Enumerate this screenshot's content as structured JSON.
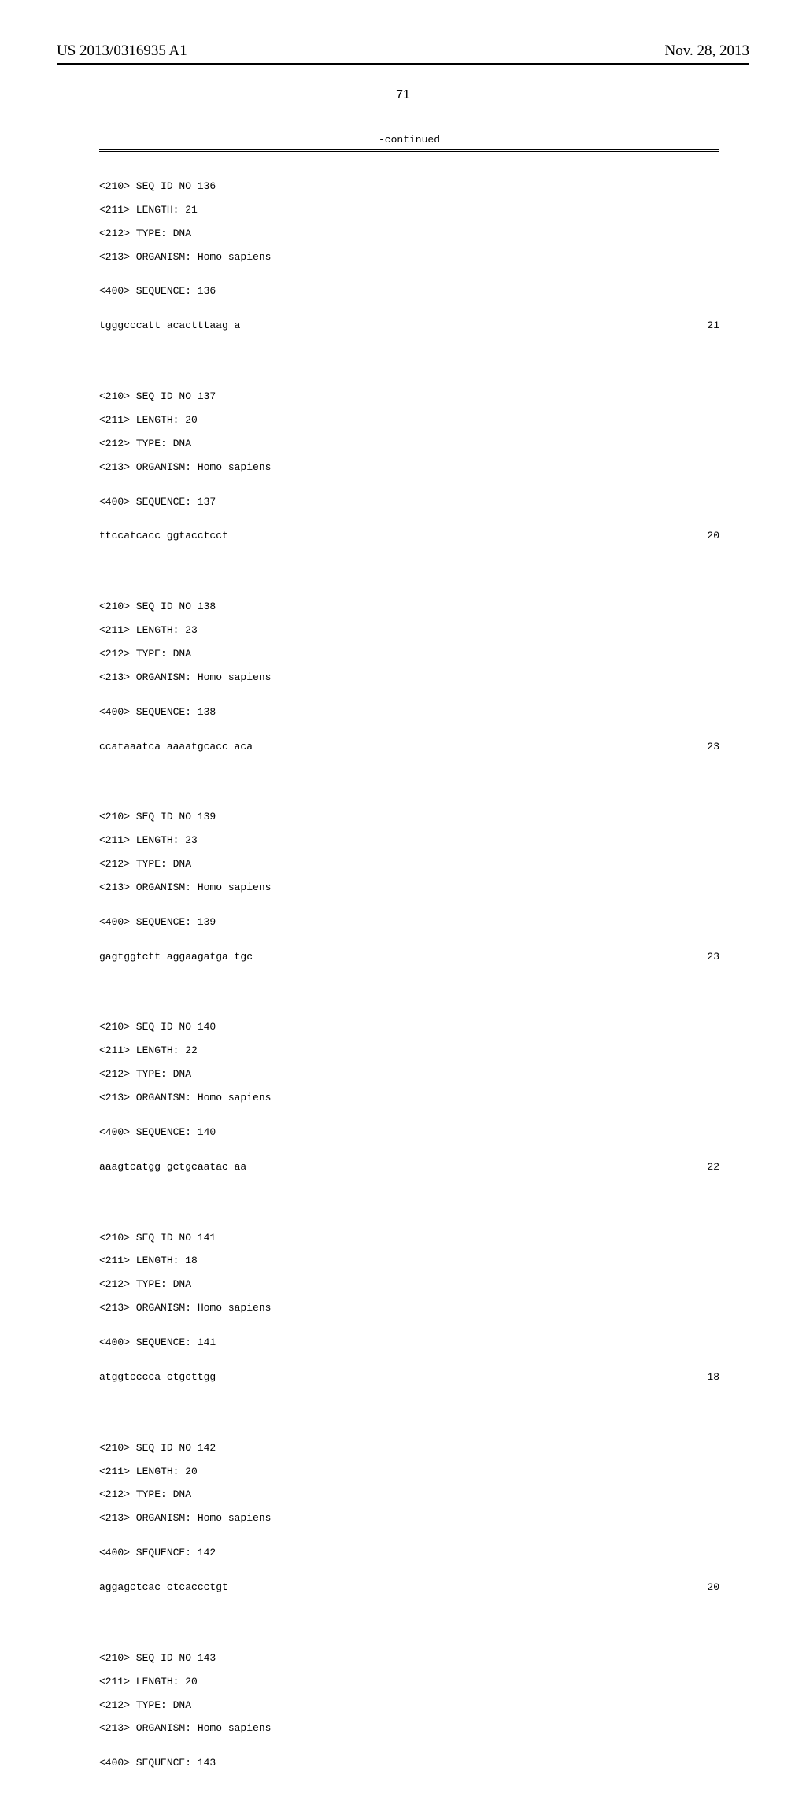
{
  "header": {
    "publication_number": "US 2013/0316935 A1",
    "publication_date": "Nov. 28, 2013",
    "page_number": "71",
    "continued_label": "-continued"
  },
  "sequences": [
    {
      "seq_id": "<210> SEQ ID NO 136",
      "length": "<211> LENGTH: 21",
      "type": "<212> TYPE: DNA",
      "organism": "<213> ORGANISM: Homo sapiens",
      "seq_label": "<400> SEQUENCE: 136",
      "dna": "tgggcccatt acactttaag a",
      "count": "21"
    },
    {
      "seq_id": "<210> SEQ ID NO 137",
      "length": "<211> LENGTH: 20",
      "type": "<212> TYPE: DNA",
      "organism": "<213> ORGANISM: Homo sapiens",
      "seq_label": "<400> SEQUENCE: 137",
      "dna": "ttccatcacc ggtacctcct",
      "count": "20"
    },
    {
      "seq_id": "<210> SEQ ID NO 138",
      "length": "<211> LENGTH: 23",
      "type": "<212> TYPE: DNA",
      "organism": "<213> ORGANISM: Homo sapiens",
      "seq_label": "<400> SEQUENCE: 138",
      "dna": "ccataaatca aaaatgcacc aca",
      "count": "23"
    },
    {
      "seq_id": "<210> SEQ ID NO 139",
      "length": "<211> LENGTH: 23",
      "type": "<212> TYPE: DNA",
      "organism": "<213> ORGANISM: Homo sapiens",
      "seq_label": "<400> SEQUENCE: 139",
      "dna": "gagtggtctt aggaagatga tgc",
      "count": "23"
    },
    {
      "seq_id": "<210> SEQ ID NO 140",
      "length": "<211> LENGTH: 22",
      "type": "<212> TYPE: DNA",
      "organism": "<213> ORGANISM: Homo sapiens",
      "seq_label": "<400> SEQUENCE: 140",
      "dna": "aaagtcatgg gctgcaatac aa",
      "count": "22"
    },
    {
      "seq_id": "<210> SEQ ID NO 141",
      "length": "<211> LENGTH: 18",
      "type": "<212> TYPE: DNA",
      "organism": "<213> ORGANISM: Homo sapiens",
      "seq_label": "<400> SEQUENCE: 141",
      "dna": "atggtcccca ctgcttgg",
      "count": "18"
    },
    {
      "seq_id": "<210> SEQ ID NO 142",
      "length": "<211> LENGTH: 20",
      "type": "<212> TYPE: DNA",
      "organism": "<213> ORGANISM: Homo sapiens",
      "seq_label": "<400> SEQUENCE: 142",
      "dna": "aggagctcac ctcaccctgt",
      "count": "20"
    },
    {
      "seq_id": "<210> SEQ ID NO 143",
      "length": "<211> LENGTH: 20",
      "type": "<212> TYPE: DNA",
      "organism": "<213> ORGANISM: Homo sapiens",
      "seq_label": "<400> SEQUENCE: 143",
      "dna": "",
      "count": ""
    }
  ]
}
